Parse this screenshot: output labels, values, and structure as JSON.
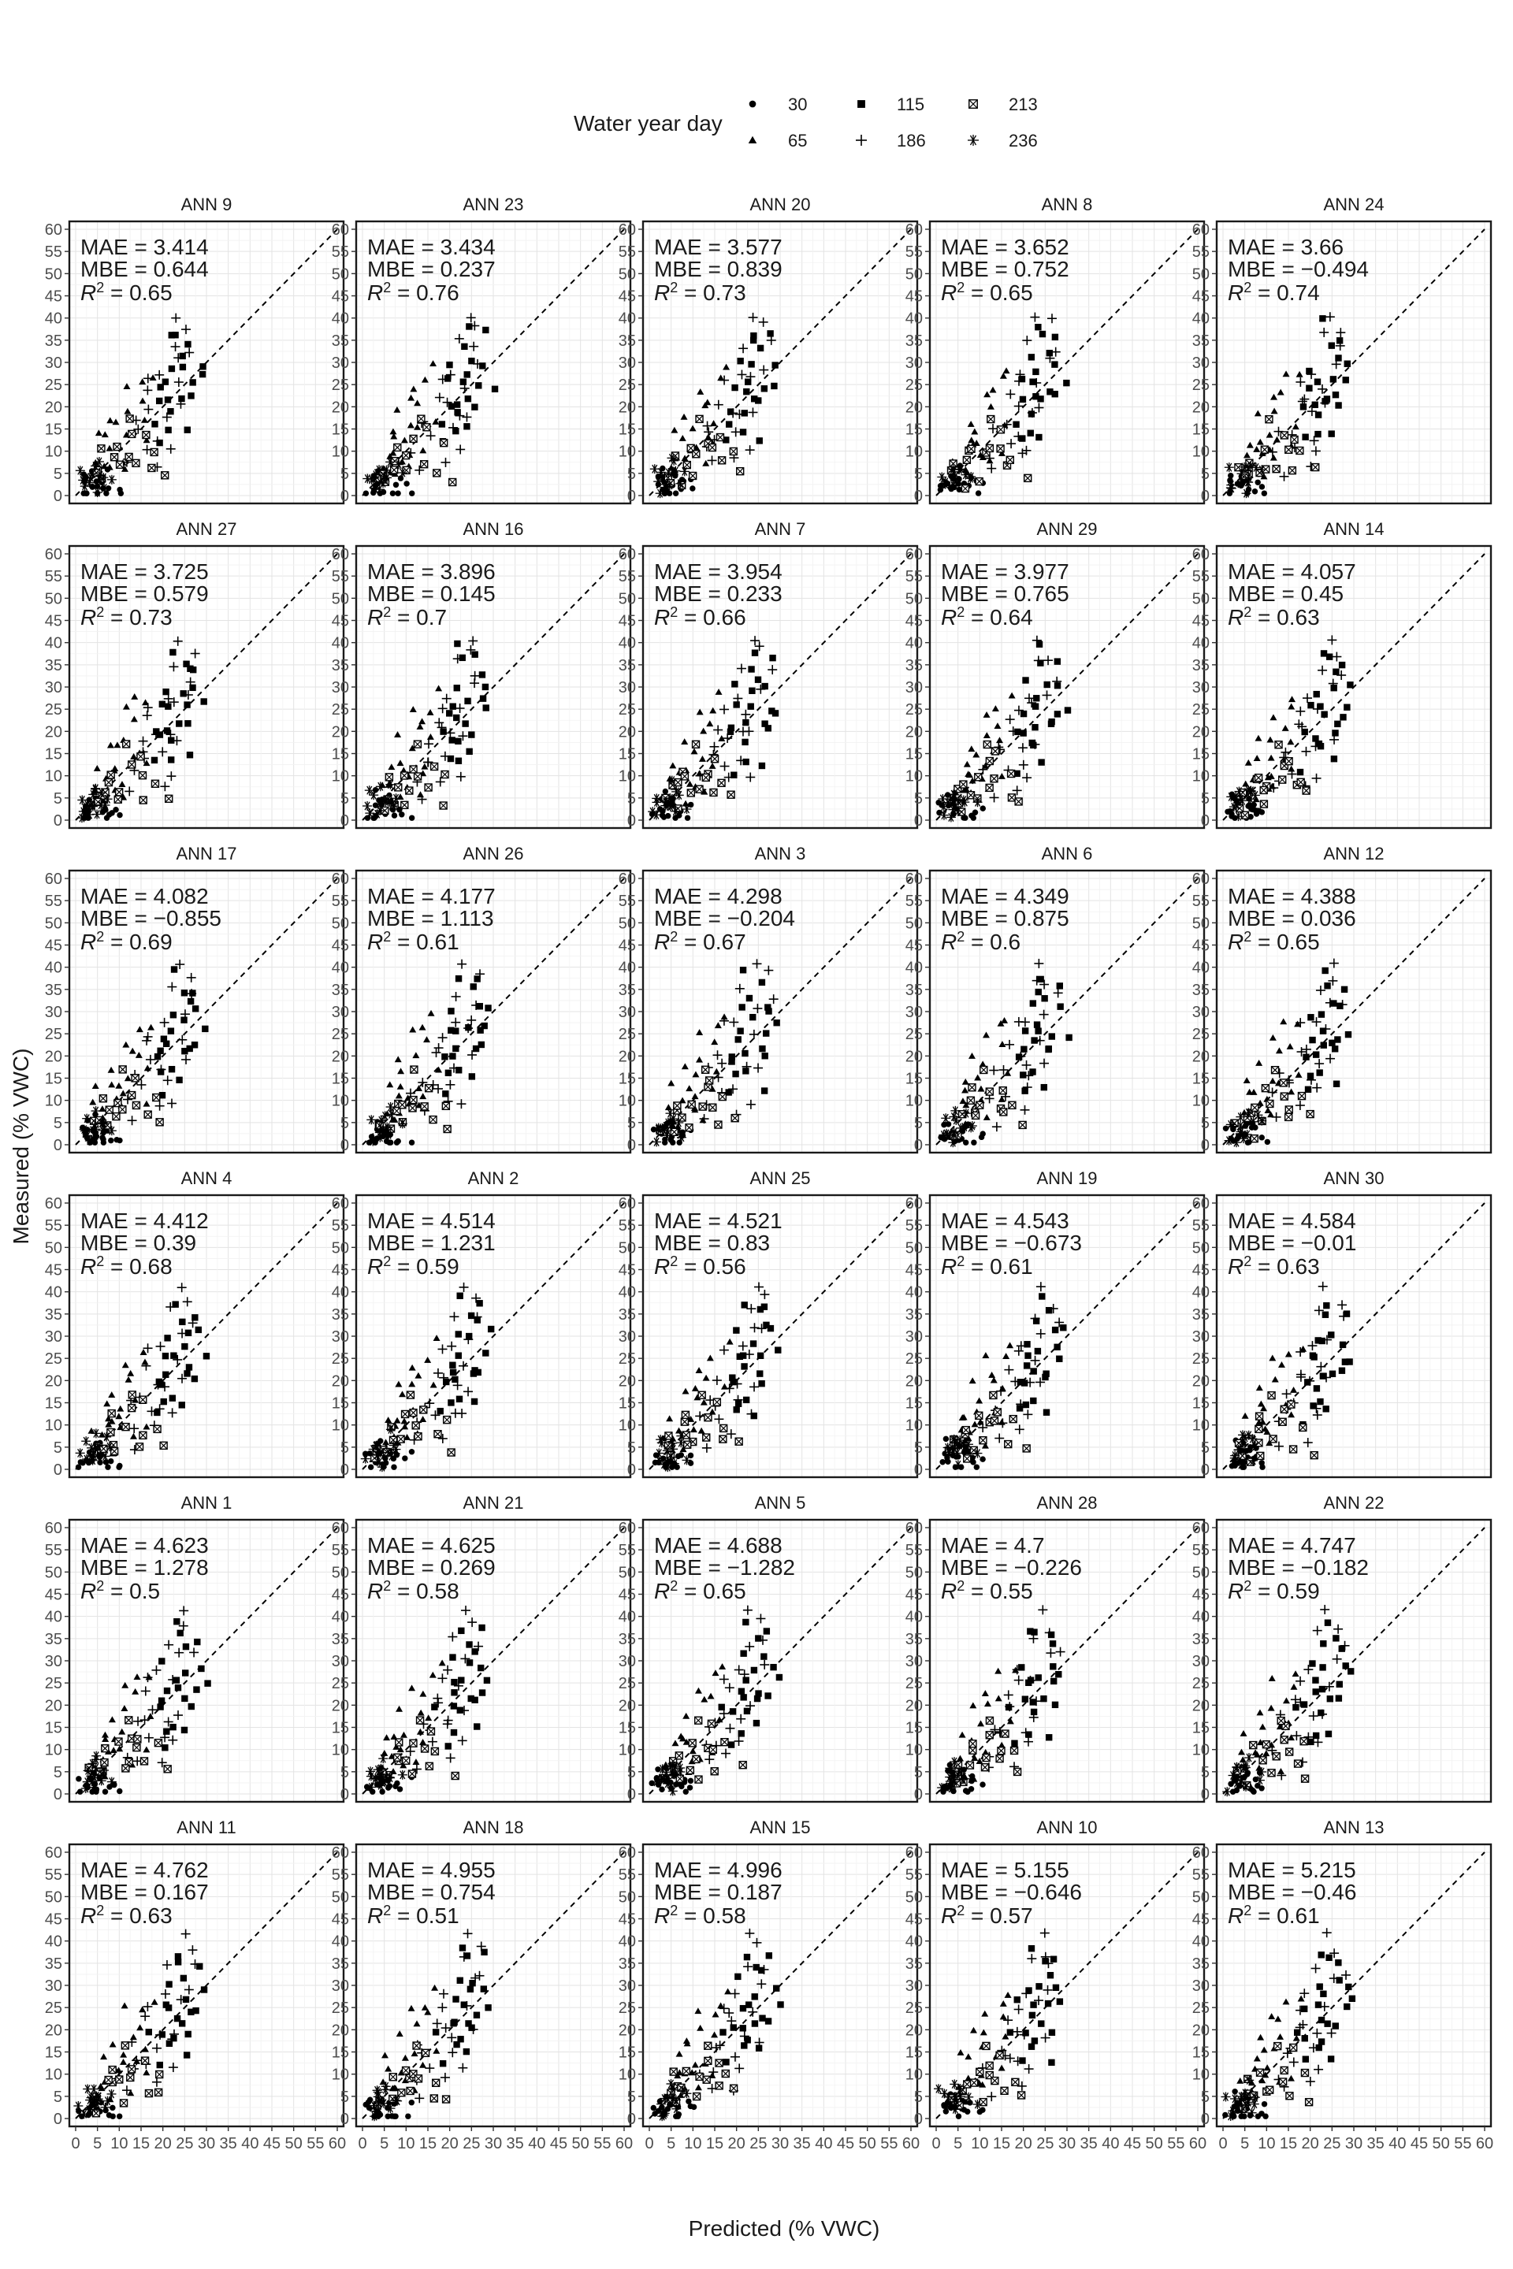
{
  "chart_data": {
    "type": "scatter",
    "xlabel": "Predicted (% VWC)",
    "ylabel": "Measured (% VWC)",
    "xlim": [
      0,
      60
    ],
    "ylim": [
      0,
      60
    ],
    "x_ticks": [
      "0",
      "5",
      "10",
      "15",
      "20",
      "25",
      "30",
      "35",
      "40",
      "45",
      "50",
      "55",
      "60"
    ],
    "y_ticks": [
      "0",
      "5",
      "10",
      "15",
      "20",
      "25",
      "30",
      "35",
      "40",
      "45",
      "50",
      "55",
      "60"
    ],
    "grid": true,
    "reference_line": "1:1 dashed",
    "legend": {
      "title": "Water year day",
      "placement": "top",
      "entries": [
        {
          "label": "30",
          "shape": "circle"
        },
        {
          "label": "65",
          "shape": "triangle"
        },
        {
          "label": "115",
          "shape": "square"
        },
        {
          "label": "186",
          "shape": "plus"
        },
        {
          "label": "213",
          "shape": "boxed-x"
        },
        {
          "label": "236",
          "shape": "asterisk"
        }
      ]
    },
    "stat_labels": {
      "mae": "MAE",
      "mbe": "MBE",
      "r2": "R",
      "r2_sup": "2",
      "eq": "="
    },
    "panels": [
      {
        "title": "ANN 9",
        "mae": "3.414",
        "mbe": "0.644",
        "r2": "0.65"
      },
      {
        "title": "ANN 23",
        "mae": "3.434",
        "mbe": "0.237",
        "r2": "0.76"
      },
      {
        "title": "ANN 20",
        "mae": "3.577",
        "mbe": "0.839",
        "r2": "0.73"
      },
      {
        "title": "ANN 8",
        "mae": "3.652",
        "mbe": "0.752",
        "r2": "0.65"
      },
      {
        "title": "ANN 24",
        "mae": "3.66",
        "mbe": "−0.494",
        "r2": "0.74"
      },
      {
        "title": "ANN 27",
        "mae": "3.725",
        "mbe": "0.579",
        "r2": "0.73"
      },
      {
        "title": "ANN 16",
        "mae": "3.896",
        "mbe": "0.145",
        "r2": "0.7"
      },
      {
        "title": "ANN 7",
        "mae": "3.954",
        "mbe": "0.233",
        "r2": "0.66"
      },
      {
        "title": "ANN 29",
        "mae": "3.977",
        "mbe": "0.765",
        "r2": "0.64"
      },
      {
        "title": "ANN 14",
        "mae": "4.057",
        "mbe": "0.45",
        "r2": "0.63"
      },
      {
        "title": "ANN 17",
        "mae": "4.082",
        "mbe": "−0.855",
        "r2": "0.69"
      },
      {
        "title": "ANN 26",
        "mae": "4.177",
        "mbe": "1.113",
        "r2": "0.61"
      },
      {
        "title": "ANN 3",
        "mae": "4.298",
        "mbe": "−0.204",
        "r2": "0.67"
      },
      {
        "title": "ANN 6",
        "mae": "4.349",
        "mbe": "0.875",
        "r2": "0.6"
      },
      {
        "title": "ANN 12",
        "mae": "4.388",
        "mbe": "0.036",
        "r2": "0.65"
      },
      {
        "title": "ANN 4",
        "mae": "4.412",
        "mbe": "0.39",
        "r2": "0.68"
      },
      {
        "title": "ANN 2",
        "mae": "4.514",
        "mbe": "1.231",
        "r2": "0.59"
      },
      {
        "title": "ANN 25",
        "mae": "4.521",
        "mbe": "0.83",
        "r2": "0.56"
      },
      {
        "title": "ANN 19",
        "mae": "4.543",
        "mbe": "−0.673",
        "r2": "0.61"
      },
      {
        "title": "ANN 30",
        "mae": "4.584",
        "mbe": "−0.01",
        "r2": "0.63"
      },
      {
        "title": "ANN 1",
        "mae": "4.623",
        "mbe": "1.278",
        "r2": "0.5"
      },
      {
        "title": "ANN 21",
        "mae": "4.625",
        "mbe": "0.269",
        "r2": "0.58"
      },
      {
        "title": "ANN 5",
        "mae": "4.688",
        "mbe": "−1.282",
        "r2": "0.65"
      },
      {
        "title": "ANN 28",
        "mae": "4.7",
        "mbe": "−0.226",
        "r2": "0.55"
      },
      {
        "title": "ANN 22",
        "mae": "4.747",
        "mbe": "−0.182",
        "r2": "0.59"
      },
      {
        "title": "ANN 11",
        "mae": "4.762",
        "mbe": "0.167",
        "r2": "0.63"
      },
      {
        "title": "ANN 18",
        "mae": "4.955",
        "mbe": "0.754",
        "r2": "0.51"
      },
      {
        "title": "ANN 15",
        "mae": "4.996",
        "mbe": "0.187",
        "r2": "0.58"
      },
      {
        "title": "ANN 10",
        "mae": "5.155",
        "mbe": "−0.646",
        "r2": "0.57"
      },
      {
        "title": "ANN 13",
        "mae": "5.215",
        "mbe": "−0.46",
        "r2": "0.61"
      }
    ],
    "points_note_values": {
      "30": [
        [
          2,
          3
        ],
        [
          3,
          1
        ],
        [
          4,
          2
        ],
        [
          5,
          4
        ],
        [
          6,
          2
        ],
        [
          3,
          3
        ],
        [
          2,
          2
        ],
        [
          5,
          1
        ],
        [
          7,
          3
        ],
        [
          4,
          5
        ],
        [
          8,
          2
        ],
        [
          6,
          4
        ],
        [
          3,
          5
        ],
        [
          9,
          1
        ],
        [
          5,
          3
        ],
        [
          2,
          1
        ],
        [
          7,
          1
        ],
        [
          4,
          3
        ],
        [
          10,
          2
        ],
        [
          6,
          1
        ]
      ],
      "65": [
        [
          5,
          8
        ],
        [
          8,
          12
        ],
        [
          10,
          15
        ],
        [
          12,
          20
        ],
        [
          15,
          26
        ],
        [
          7,
          10
        ],
        [
          9,
          18
        ],
        [
          11,
          9
        ],
        [
          13,
          14
        ],
        [
          6,
          6
        ],
        [
          14,
          22
        ],
        [
          16,
          17
        ],
        [
          8,
          5
        ],
        [
          10,
          11
        ],
        [
          12,
          7
        ],
        [
          17,
          28
        ],
        [
          6,
          13
        ],
        [
          9,
          9
        ],
        [
          15,
          11
        ],
        [
          11,
          24
        ]
      ],
      "115": [
        [
          18,
          18
        ],
        [
          20,
          25
        ],
        [
          22,
          22
        ],
        [
          24,
          28
        ],
        [
          25,
          20
        ],
        [
          26,
          32
        ],
        [
          21,
          15
        ],
        [
          23,
          17
        ],
        [
          27,
          24
        ],
        [
          19,
          12
        ],
        [
          24,
          35
        ],
        [
          28,
          30
        ],
        [
          22,
          27
        ],
        [
          25,
          14
        ],
        [
          26,
          21
        ],
        [
          20,
          20
        ],
        [
          23,
          38
        ],
        [
          27,
          36
        ],
        [
          29,
          26
        ],
        [
          21,
          30
        ]
      ],
      "186": [
        [
          12,
          10
        ],
        [
          15,
          15
        ],
        [
          18,
          20
        ],
        [
          20,
          28
        ],
        [
          22,
          35
        ],
        [
          24,
          42
        ],
        [
          16,
          12
        ],
        [
          19,
          8
        ],
        [
          21,
          18
        ],
        [
          25,
          30
        ],
        [
          14,
          16
        ],
        [
          17,
          22
        ],
        [
          23,
          25
        ],
        [
          26,
          38
        ],
        [
          13,
          6
        ],
        [
          20,
          14
        ],
        [
          27,
          33
        ],
        [
          18,
          26
        ],
        [
          22,
          11
        ],
        [
          24,
          19
        ]
      ],
      "213": [
        [
          5,
          6
        ],
        [
          7,
          9
        ],
        [
          9,
          11
        ],
        [
          11,
          8
        ],
        [
          13,
          12
        ],
        [
          15,
          14
        ],
        [
          6,
          3
        ],
        [
          8,
          7
        ],
        [
          10,
          5
        ],
        [
          12,
          16
        ],
        [
          14,
          9
        ],
        [
          16,
          6
        ],
        [
          20,
          5
        ],
        [
          4,
          4
        ],
        [
          18,
          10
        ]
      ],
      "236": [
        [
          2,
          2
        ],
        [
          3,
          4
        ],
        [
          4,
          3
        ],
        [
          5,
          5
        ],
        [
          6,
          3
        ],
        [
          3,
          2
        ],
        [
          4,
          6
        ],
        [
          5,
          4
        ],
        [
          7,
          5
        ],
        [
          2,
          5
        ],
        [
          3,
          3
        ],
        [
          6,
          6
        ],
        [
          8,
          4
        ],
        [
          4,
          2
        ],
        [
          5,
          7
        ]
      ]
    }
  }
}
